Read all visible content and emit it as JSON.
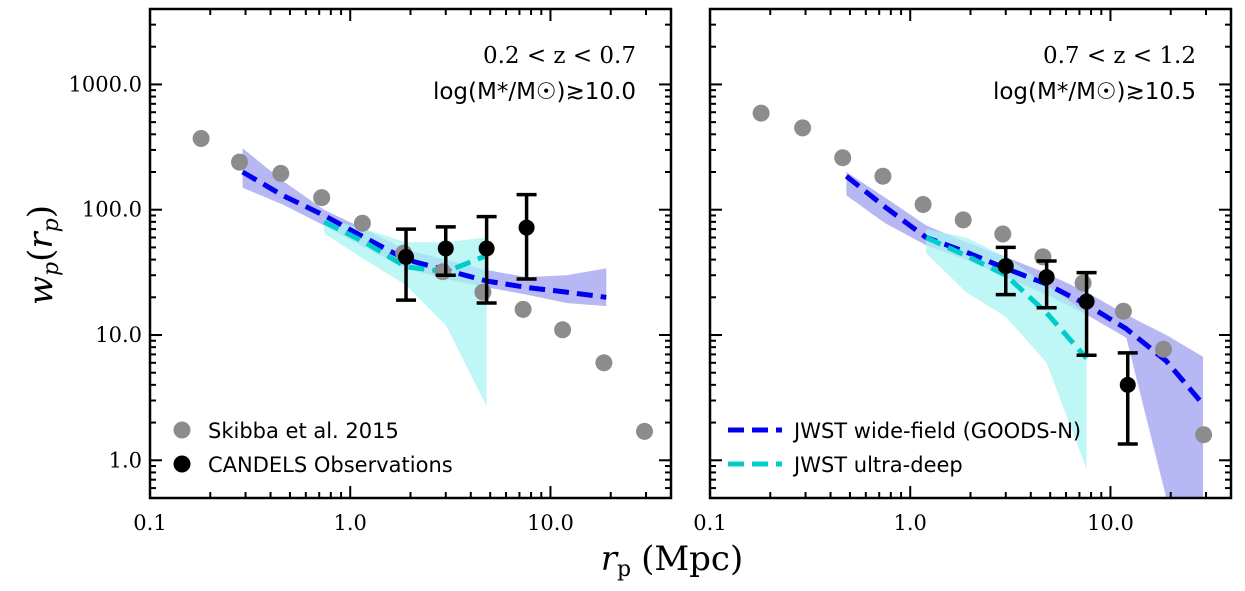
{
  "figure": {
    "xlabel_main": "r",
    "xlabel_sub": "p",
    "xlabel_unit": "(Mpc)",
    "ylabel_main": "w",
    "ylabel_sub": "p",
    "ylabel_paren_open": "(",
    "ylabel_r": "r",
    "ylabel_r_sub": "p",
    "ylabel_paren_close": ")"
  },
  "colors": {
    "skibba": "#8c8c8c",
    "candels": "#000000",
    "wide": "#0000ee",
    "wide_band": "#9999ee",
    "deep": "#00cccc",
    "deep_band": "#aaf3f3"
  },
  "chart_data": [
    {
      "type": "scatter",
      "panel": "left",
      "xscale": "log",
      "yscale": "log",
      "xlim": [
        0.1,
        40
      ],
      "ylim": [
        0.5,
        4000
      ],
      "xticks": [
        "0.1",
        "1.0",
        "10.0"
      ],
      "yticks": [
        "1.0",
        "10.0",
        "100.0",
        "1000.0"
      ],
      "annotation_line1": "0.2 < z < 0.7",
      "annotation_line2": "log(M*/M☉)≳10.0",
      "legend": [
        {
          "label": "Skibba et al. 2015",
          "marker": "circle",
          "series": "skibba"
        },
        {
          "label": "CANDELS Observations",
          "marker": "circle",
          "series": "candels"
        }
      ],
      "series": {
        "skibba": {
          "name": "Skibba et al. 2015",
          "x": [
            0.18,
            0.28,
            0.45,
            0.72,
            1.15,
            1.85,
            2.9,
            4.6,
            7.3,
            11.5,
            18.5,
            29.5
          ],
          "y": [
            370,
            240,
            195,
            125,
            78,
            45,
            32,
            22,
            16,
            11,
            6,
            1.7
          ]
        },
        "candels": {
          "name": "CANDELS Observations",
          "x": [
            1.9,
            3.0,
            4.8,
            7.6
          ],
          "y": [
            42,
            49,
            49,
            72
          ],
          "yerr_low": [
            19,
            30,
            18,
            28
          ],
          "yerr_high": [
            70,
            73,
            88,
            132
          ]
        },
        "wide": {
          "name": "JWST wide-field (GOODS-N)",
          "x": [
            0.29,
            0.46,
            0.74,
            1.18,
            1.9,
            3.0,
            4.8,
            7.6,
            12.0,
            19.0
          ],
          "y": [
            200,
            130,
            90,
            60,
            40,
            33,
            27,
            24,
            22,
            20
          ],
          "band_low": [
            150,
            110,
            75,
            50,
            34,
            28,
            24,
            21,
            18,
            17
          ],
          "band_high": [
            310,
            170,
            100,
            70,
            48,
            40,
            33,
            29,
            30,
            34
          ]
        },
        "deep": {
          "name": "JWST ultra-deep",
          "x": [
            0.74,
            1.18,
            1.9,
            3.0,
            4.8
          ],
          "y": [
            80,
            55,
            35,
            32,
            43
          ],
          "band_low": [
            65,
            40,
            25,
            12,
            2.7
          ],
          "band_high": [
            85,
            70,
            55,
            55,
            60
          ]
        }
      }
    },
    {
      "type": "scatter",
      "panel": "right",
      "xscale": "log",
      "yscale": "log",
      "xlim": [
        0.1,
        40
      ],
      "ylim": [
        0.5,
        4000
      ],
      "xticks": [
        "0.1",
        "1.0",
        "10.0"
      ],
      "yticks": [
        "1.0",
        "10.0",
        "100.0",
        "1000.0"
      ],
      "annotation_line1": "0.7 < z < 1.2",
      "annotation_line2": "log(M*/M☉)≳10.5",
      "legend": [
        {
          "label": "JWST wide-field (GOODS-N)",
          "marker": "dash",
          "series": "wide"
        },
        {
          "label": "JWST ultra-deep",
          "marker": "dash",
          "series": "deep"
        }
      ],
      "series": {
        "skibba": {
          "name": "Skibba et al. 2015",
          "x": [
            0.18,
            0.29,
            0.46,
            0.73,
            1.16,
            1.84,
            2.9,
            4.6,
            7.3,
            11.6,
            18.4,
            29.2
          ],
          "y": [
            590,
            450,
            260,
            185,
            110,
            83,
            64,
            42,
            26,
            15.5,
            7.7,
            1.6
          ]
        },
        "candels": {
          "name": "CANDELS Observations",
          "x": [
            3.0,
            4.8,
            7.6,
            12.2
          ],
          "y": [
            35.5,
            29,
            18.5,
            4.0
          ],
          "yerr_low": [
            21,
            16.5,
            6.9,
            1.35
          ],
          "yerr_high": [
            50,
            39,
            31.5,
            7.2
          ]
        },
        "wide": {
          "name": "JWST wide-field (GOODS-N)",
          "x": [
            0.48,
            0.75,
            1.2,
            1.9,
            3.0,
            4.8,
            7.6,
            12.0,
            19.0,
            29.0
          ],
          "y": [
            185,
            105,
            60,
            46,
            34,
            25.5,
            17.5,
            11.2,
            6.2,
            2.8
          ],
          "band_low": [
            130,
            78,
            52,
            40,
            29,
            21,
            14.5,
            9.5,
            0.5,
            0.5
          ],
          "band_high": [
            200,
            125,
            75,
            55,
            42,
            31,
            22,
            14.5,
            10,
            6.7
          ]
        },
        "deep": {
          "name": "JWST ultra-deep",
          "x": [
            1.2,
            1.9,
            3.0,
            4.8,
            7.6
          ],
          "y": [
            60,
            43,
            30,
            15,
            6.5
          ],
          "band_low": [
            45,
            22,
            14,
            6,
            0.85
          ],
          "band_high": [
            70,
            60,
            42,
            25,
            15
          ]
        }
      }
    }
  ]
}
